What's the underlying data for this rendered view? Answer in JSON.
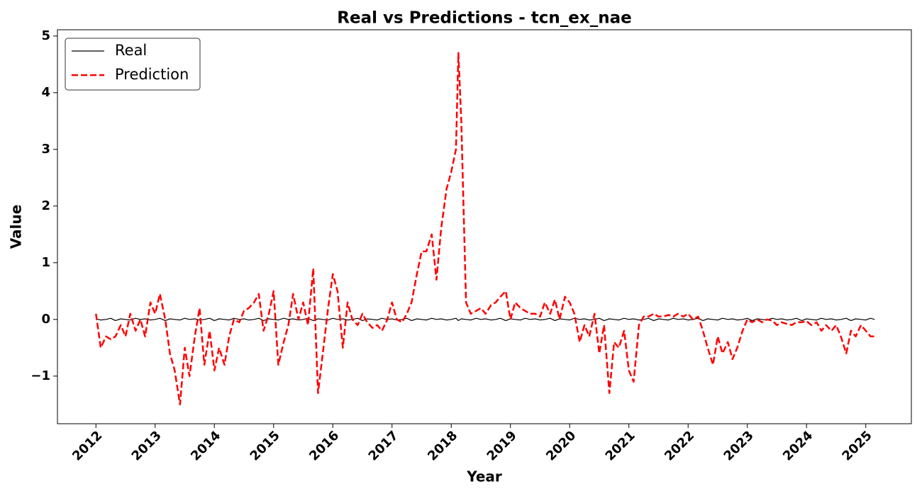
{
  "chart_data": {
    "type": "line",
    "title": "Real vs Predictions - tcn_ex_nae",
    "x_label": "Year",
    "y_label": "Value",
    "x": [
      2012.0,
      2012.08,
      2012.17,
      2012.25,
      2012.33,
      2012.42,
      2012.5,
      2012.58,
      2012.67,
      2012.75,
      2012.83,
      2012.92,
      2013.0,
      2013.08,
      2013.17,
      2013.25,
      2013.33,
      2013.42,
      2013.5,
      2013.58,
      2013.67,
      2013.75,
      2013.83,
      2013.92,
      2014.0,
      2014.08,
      2014.17,
      2014.25,
      2014.33,
      2014.42,
      2014.5,
      2014.58,
      2014.67,
      2014.75,
      2014.83,
      2014.92,
      2015.0,
      2015.08,
      2015.17,
      2015.25,
      2015.33,
      2015.42,
      2015.5,
      2015.58,
      2015.67,
      2015.75,
      2015.83,
      2015.92,
      2016.0,
      2016.08,
      2016.17,
      2016.25,
      2016.33,
      2016.42,
      2016.5,
      2016.58,
      2016.67,
      2016.75,
      2016.83,
      2016.92,
      2017.0,
      2017.08,
      2017.17,
      2017.25,
      2017.33,
      2017.42,
      2017.5,
      2017.58,
      2017.67,
      2017.75,
      2017.83,
      2017.92,
      2018.0,
      2018.08,
      2018.12,
      2018.17,
      2018.25,
      2018.33,
      2018.42,
      2018.5,
      2018.58,
      2018.67,
      2018.75,
      2018.83,
      2018.92,
      2019.0,
      2019.08,
      2019.17,
      2019.25,
      2019.33,
      2019.42,
      2019.5,
      2019.58,
      2019.67,
      2019.75,
      2019.83,
      2019.92,
      2020.0,
      2020.08,
      2020.17,
      2020.25,
      2020.33,
      2020.42,
      2020.5,
      2020.58,
      2020.67,
      2020.75,
      2020.83,
      2020.92,
      2021.0,
      2021.08,
      2021.17,
      2021.25,
      2021.33,
      2021.42,
      2021.5,
      2021.58,
      2021.67,
      2021.75,
      2021.83,
      2021.92,
      2022.0,
      2022.08,
      2022.17,
      2022.25,
      2022.33,
      2022.42,
      2022.5,
      2022.58,
      2022.67,
      2022.75,
      2022.83,
      2022.92,
      2023.0,
      2023.08,
      2023.17,
      2023.25,
      2023.33,
      2023.42,
      2023.5,
      2023.58,
      2023.67,
      2023.75,
      2023.83,
      2023.92,
      2024.0,
      2024.08,
      2024.17,
      2024.25,
      2024.33,
      2024.42,
      2024.5,
      2024.58,
      2024.67,
      2024.75,
      2024.83,
      2024.92,
      2025.0,
      2025.08,
      2025.15
    ],
    "series": [
      {
        "name": "Real",
        "color": "#000000",
        "linestyle": "solid",
        "linewidth": 1.2,
        "values": [
          0.01,
          -0.01,
          0.0,
          0.02,
          -0.02,
          0.01,
          0.0,
          -0.01,
          0.02,
          0.0,
          0.01,
          -0.01,
          0.0,
          0.02,
          -0.02,
          0.01,
          0.0,
          -0.01,
          0.02,
          0.0,
          0.01,
          -0.01,
          0.0,
          0.02,
          -0.02,
          0.01,
          0.0,
          -0.01,
          0.02,
          0.0,
          0.01,
          -0.01,
          0.0,
          0.02,
          -0.02,
          0.01,
          0.0,
          -0.01,
          0.02,
          0.0,
          0.01,
          -0.01,
          0.0,
          0.02,
          -0.02,
          0.01,
          0.0,
          -0.01,
          0.02,
          0.0,
          0.01,
          -0.01,
          0.0,
          0.02,
          -0.02,
          0.01,
          0.0,
          -0.01,
          0.02,
          0.0,
          0.01,
          -0.01,
          0.0,
          0.02,
          -0.02,
          0.01,
          0.0,
          -0.01,
          0.02,
          0.0,
          0.01,
          -0.01,
          0.0,
          0.02,
          -0.02,
          0.01,
          0.0,
          -0.01,
          0.02,
          0.0,
          0.01,
          -0.01,
          0.0,
          0.02,
          -0.02,
          0.01,
          0.0,
          -0.01,
          0.02,
          0.0,
          0.01,
          -0.01,
          0.0,
          0.02,
          -0.02,
          0.01,
          0.0,
          -0.01,
          0.02,
          0.0,
          0.01,
          -0.01,
          0.0,
          0.02,
          -0.02,
          0.01,
          0.0,
          -0.01,
          0.02,
          0.0,
          0.01,
          -0.01,
          0.0,
          0.02,
          -0.02,
          0.01,
          0.0,
          -0.01,
          0.02,
          0.0,
          0.01,
          -0.01,
          0.0,
          0.02,
          -0.02,
          0.01,
          0.0,
          -0.01,
          0.02,
          0.0,
          0.01,
          -0.01,
          0.0,
          0.02,
          -0.02,
          0.01,
          0.0,
          -0.01,
          0.02,
          0.0,
          0.01,
          -0.01,
          0.0,
          0.02,
          -0.02,
          0.01,
          0.0,
          -0.01,
          0.02,
          0.0,
          0.01,
          -0.01,
          0.0,
          0.02,
          -0.02,
          0.01,
          0.0,
          -0.01,
          0.02,
          0.0
        ]
      },
      {
        "name": "Prediction",
        "color": "#ff0000",
        "linestyle": "dashed",
        "linewidth": 2.5,
        "values": [
          0.1,
          -0.5,
          -0.3,
          -0.35,
          -0.3,
          -0.1,
          -0.3,
          0.1,
          -0.2,
          0.0,
          -0.3,
          0.3,
          0.1,
          0.45,
          0.0,
          -0.6,
          -0.9,
          -1.5,
          -0.5,
          -1.0,
          -0.3,
          0.2,
          -0.8,
          -0.2,
          -0.9,
          -0.5,
          -0.8,
          -0.3,
          0.0,
          -0.05,
          0.15,
          0.2,
          0.3,
          0.45,
          -0.2,
          0.1,
          0.5,
          -0.8,
          -0.4,
          -0.1,
          0.45,
          0.0,
          0.3,
          -0.1,
          0.9,
          -1.3,
          -0.6,
          0.2,
          0.8,
          0.5,
          -0.5,
          0.3,
          0.0,
          -0.1,
          0.1,
          -0.05,
          -0.15,
          -0.1,
          -0.2,
          0.0,
          0.3,
          0.0,
          -0.05,
          0.1,
          0.3,
          0.8,
          1.2,
          1.2,
          1.5,
          0.7,
          1.6,
          2.3,
          2.6,
          3.0,
          4.7,
          3.5,
          0.3,
          0.1,
          0.15,
          0.2,
          0.1,
          0.25,
          0.3,
          0.4,
          0.5,
          0.0,
          0.3,
          0.2,
          0.15,
          0.1,
          0.1,
          0.05,
          0.3,
          0.1,
          0.35,
          0.0,
          0.4,
          0.3,
          0.1,
          -0.4,
          -0.1,
          -0.3,
          0.1,
          -0.6,
          -0.1,
          -1.3,
          -0.4,
          -0.5,
          -0.2,
          -0.9,
          -1.1,
          -0.1,
          0.05,
          0.05,
          0.1,
          0.05,
          0.05,
          0.08,
          0.05,
          0.1,
          0.05,
          0.1,
          0.0,
          0.05,
          -0.2,
          -0.5,
          -0.8,
          -0.3,
          -0.6,
          -0.4,
          -0.7,
          -0.5,
          -0.2,
          0.0,
          -0.05,
          0.0,
          -0.05,
          0.0,
          -0.02,
          -0.1,
          -0.05,
          -0.08,
          -0.1,
          -0.05,
          -0.05,
          -0.03,
          -0.1,
          -0.05,
          -0.2,
          -0.1,
          -0.2,
          -0.1,
          -0.3,
          -0.6,
          -0.2,
          -0.3,
          -0.1,
          -0.2,
          -0.3,
          -0.3
        ]
      }
    ],
    "xlim": [
      2011.35,
      2025.77
    ],
    "xticks": [
      2012,
      2013,
      2014,
      2015,
      2016,
      2017,
      2018,
      2019,
      2020,
      2021,
      2022,
      2023,
      2024,
      2025
    ],
    "ylim": [
      -1.84,
      5.11
    ],
    "yticks": [
      {
        "value": -1,
        "label": "−1"
      },
      0,
      1,
      2,
      3,
      4,
      5
    ],
    "grid": false,
    "legend": "upper left"
  }
}
